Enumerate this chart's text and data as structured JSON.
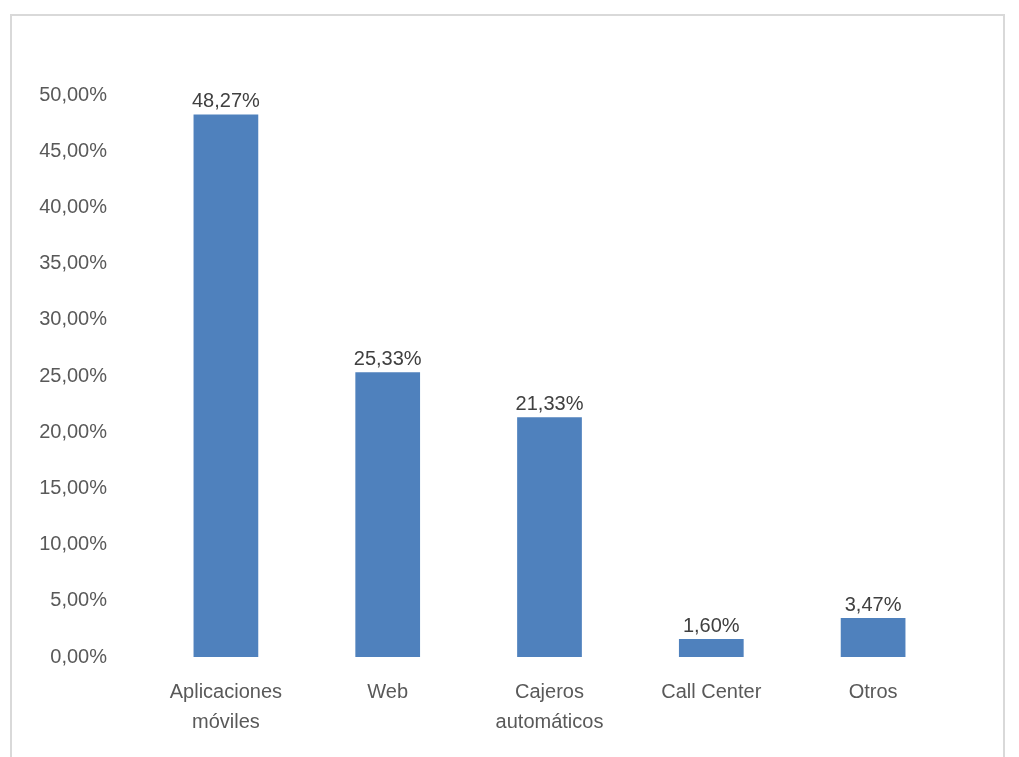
{
  "chart_data": {
    "type": "bar",
    "categories": [
      "Aplicaciones móviles",
      "Web",
      "Cajeros automáticos",
      "Call Center",
      "Otros"
    ],
    "values": [
      48.27,
      25.33,
      21.33,
      1.6,
      3.47
    ],
    "color": "#4f81bd",
    "value_labels": [
      "48,27%",
      "25,33%",
      "21,33%",
      "1,60%",
      "3,47%"
    ],
    "ylim": [
      0,
      50
    ],
    "yticks": [
      {
        "value": 0,
        "label": "0,00%"
      },
      {
        "value": 5,
        "label": "5,00%"
      },
      {
        "value": 10,
        "label": "10,00%"
      },
      {
        "value": 15,
        "label": "15,00%"
      },
      {
        "value": 20,
        "label": "20,00%"
      },
      {
        "value": 25,
        "label": "25,00%"
      },
      {
        "value": 30,
        "label": "30,00%"
      },
      {
        "value": 35,
        "label": "35,00%"
      },
      {
        "value": 40,
        "label": "40,00%"
      },
      {
        "value": 45,
        "label": "45,00%"
      },
      {
        "value": 50,
        "label": "50,00%"
      }
    ]
  }
}
